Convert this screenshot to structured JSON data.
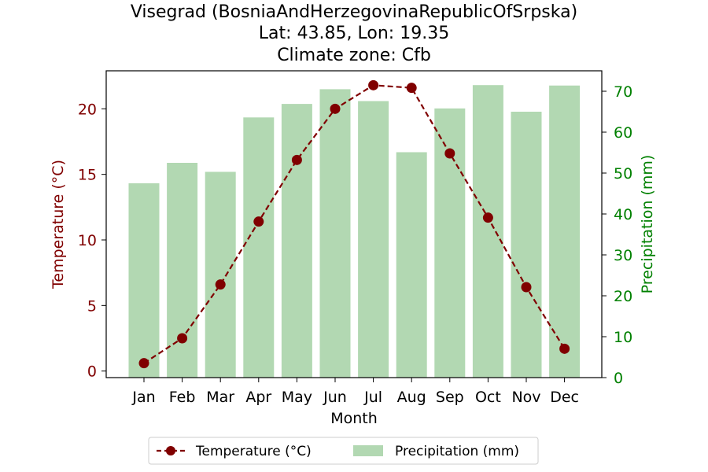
{
  "chart_data": {
    "type": "bar+line",
    "title_lines": [
      "Visegrad (BosniaAndHerzegovinaRepublicOfSrpska)",
      "Lat: 43.85, Lon: 19.35",
      "Climate zone: Cfb"
    ],
    "xlabel": "Month",
    "categories": [
      "Jan",
      "Feb",
      "Mar",
      "Apr",
      "May",
      "Jun",
      "Jul",
      "Aug",
      "Sep",
      "Oct",
      "Nov",
      "Dec"
    ],
    "temperature": {
      "name": "Temperature (°C)",
      "axis_label": "Temperature (°C)",
      "values": [
        0.6,
        2.5,
        6.6,
        11.4,
        16.1,
        20.0,
        21.8,
        21.6,
        16.6,
        11.7,
        6.4,
        1.7
      ],
      "ylim": [
        -0.5,
        22.9
      ],
      "ticks": [
        0,
        5,
        10,
        15,
        20
      ],
      "color": "#800000"
    },
    "precipitation": {
      "name": "Precipitation (mm)",
      "axis_label": "Precipitation (mm)",
      "values": [
        47.5,
        52.5,
        50.3,
        63.6,
        66.9,
        70.5,
        67.6,
        55.1,
        65.8,
        71.5,
        65.0,
        71.4
      ],
      "ylim": [
        0,
        75
      ],
      "ticks": [
        0,
        10,
        20,
        30,
        40,
        50,
        60,
        70
      ],
      "color": "#b2d8b2",
      "axis_color": "#008000"
    },
    "grid": false,
    "legend_position": "bottom-center"
  }
}
